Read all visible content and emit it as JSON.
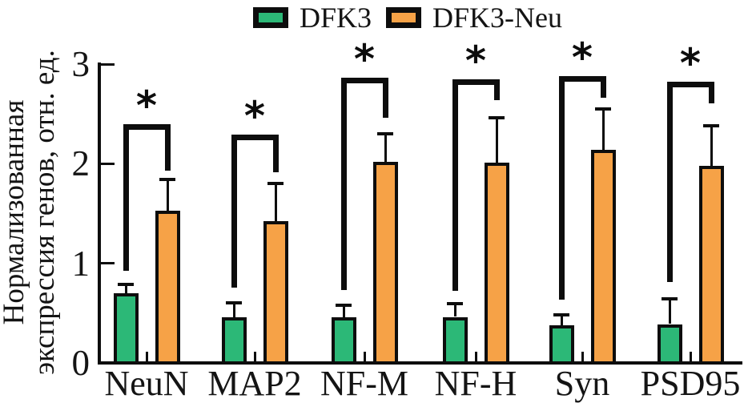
{
  "chart_data": {
    "type": "bar",
    "title": "",
    "categories": [
      "NeuN",
      "MAP2",
      "NF-M",
      "NF-H",
      "Syn",
      "PSD95"
    ],
    "series": [
      {
        "name": "DFK3",
        "color": "#2cb877",
        "values": [
          0.7,
          0.46,
          0.46,
          0.46,
          0.38,
          0.39
        ],
        "errors": [
          0.1,
          0.15,
          0.13,
          0.14,
          0.11,
          0.26
        ]
      },
      {
        "name": "DFK3-Neu",
        "color": "#f6a247",
        "values": [
          1.53,
          1.42,
          2.02,
          2.01,
          2.14,
          1.98
        ],
        "errors": [
          0.32,
          0.39,
          0.29,
          0.46,
          0.42,
          0.41
        ]
      }
    ],
    "ylabel_lines": [
      "Нормализованная",
      "экспрессия генов, отн. ед."
    ],
    "xlabel": "",
    "yticks": [
      0,
      1,
      2,
      3
    ],
    "ylim": [
      0,
      3
    ],
    "grid": false,
    "legend_position": "top-center",
    "bar_border_color": "#0d0d0d",
    "significance": [
      {
        "label": "*",
        "bracket_top": 2.4,
        "left_drop_to": 0.93,
        "right_drop_to": 1.93
      },
      {
        "label": "*",
        "bracket_top": 2.29,
        "left_drop_to": 0.75,
        "right_drop_to": 1.91
      },
      {
        "label": "*",
        "bracket_top": 2.86,
        "left_drop_to": 0.73,
        "right_drop_to": 2.46
      },
      {
        "label": "*",
        "bracket_top": 2.85,
        "left_drop_to": 0.73,
        "right_drop_to": 2.64
      },
      {
        "label": "*",
        "bracket_top": 2.88,
        "left_drop_to": 0.64,
        "right_drop_to": 2.66
      },
      {
        "label": "*",
        "bracket_top": 2.82,
        "left_drop_to": 0.81,
        "right_drop_to": 2.6
      }
    ]
  }
}
